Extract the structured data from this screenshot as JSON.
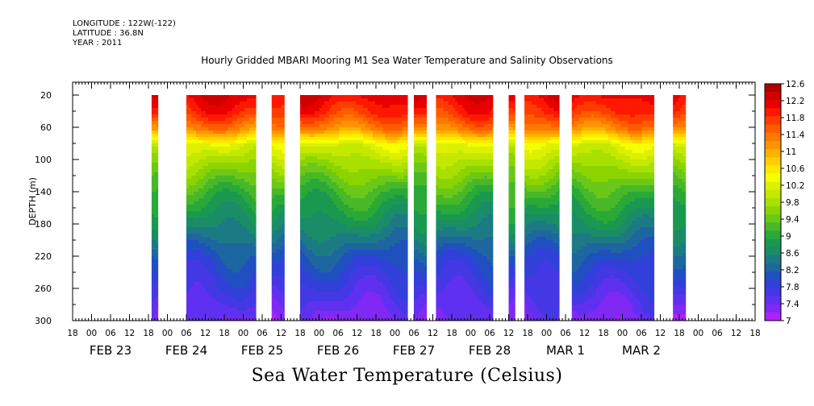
{
  "header": {
    "longitude": "LONGITUDE : 122W(-122)",
    "latitude": "LATITUDE : 36.8N",
    "year": "YEAR : 2011"
  },
  "chart_data": {
    "type": "heatmap",
    "title": "Hourly Gridded MBARI Mooring M1 Sea Water Temperature and Salinity Observations",
    "footer": "Sea Water Temperature (Celsius)",
    "ylabel": "DEPTH (m)",
    "ylim": [
      300,
      0
    ],
    "y_ticks": [
      "20",
      "60",
      "100",
      "140",
      "180",
      "220",
      "260",
      "300"
    ],
    "y_tick_values": [
      20,
      60,
      100,
      140,
      180,
      220,
      260,
      300
    ],
    "x_hour_labels": [
      "18",
      "00",
      "06",
      "12",
      "18",
      "00",
      "06",
      "12",
      "18",
      "00",
      "06",
      "12",
      "18",
      "00",
      "06",
      "12",
      "18",
      "00",
      "06",
      "12",
      "18",
      "00",
      "06",
      "12",
      "18",
      "00",
      "06",
      "12",
      "18",
      "00",
      "06",
      "12",
      "18",
      "00",
      "06",
      "12",
      "18"
    ],
    "x_hour_start": "FEB 22 18:00",
    "x_hour_step_h": 6,
    "x_day_labels": [
      {
        "label": "FEB 23",
        "hour": 24
      },
      {
        "label": "FEB 24",
        "hour": 48
      },
      {
        "label": "FEB 25",
        "hour": 72
      },
      {
        "label": "FEB 26",
        "hour": 96
      },
      {
        "label": "FEB 27",
        "hour": 120
      },
      {
        "label": "FEB 28",
        "hour": 144
      },
      {
        "label": "MAR  1",
        "hour": 168
      },
      {
        "label": "MAR  2",
        "hour": 192
      }
    ],
    "data_segments_hours": [
      [
        25,
        27
      ],
      [
        36,
        58
      ],
      [
        63,
        67
      ],
      [
        72,
        106
      ],
      [
        108,
        112
      ],
      [
        115,
        133
      ],
      [
        138,
        140
      ],
      [
        143,
        154
      ],
      [
        158,
        184
      ],
      [
        190,
        194
      ]
    ],
    "depth_profile": {
      "depth": [
        20,
        40,
        60,
        80,
        100,
        140,
        180,
        220,
        260,
        300
      ],
      "temperature": [
        12.3,
        12.0,
        11.4,
        10.3,
        9.9,
        9.2,
        8.7,
        8.1,
        7.7,
        7.3
      ]
    },
    "colorbar": {
      "ticks": [
        "12.6",
        "12.2",
        "11.8",
        "11.4",
        "11",
        "10.6",
        "10.2",
        "9.8",
        "9.4",
        "9",
        "8.6",
        "8.2",
        "7.8",
        "7.4",
        "7"
      ],
      "levels": [
        12.6,
        12.4,
        12.2,
        12.0,
        11.8,
        11.6,
        11.4,
        11.2,
        11.0,
        10.8,
        10.6,
        10.4,
        10.2,
        10.0,
        9.8,
        9.6,
        9.4,
        9.2,
        9.0,
        8.8,
        8.6,
        8.4,
        8.2,
        8.0,
        7.8,
        7.6,
        7.4,
        7.2,
        7.0
      ],
      "colors": [
        "#b00000",
        "#d00000",
        "#e80000",
        "#ff1800",
        "#ff3c00",
        "#ff5c00",
        "#ff7800",
        "#ff9400",
        "#ffb000",
        "#ffd000",
        "#ffe800",
        "#f4ff00",
        "#dcf000",
        "#c4e800",
        "#a8e000",
        "#8cd400",
        "#6cc818",
        "#48b828",
        "#2aa838",
        "#1a9850",
        "#1a8c68",
        "#1c7a84",
        "#1e66a0",
        "#2050c0",
        "#3040d8",
        "#4438e4",
        "#6030f0",
        "#8028f4",
        "#b020f8"
      ]
    }
  }
}
